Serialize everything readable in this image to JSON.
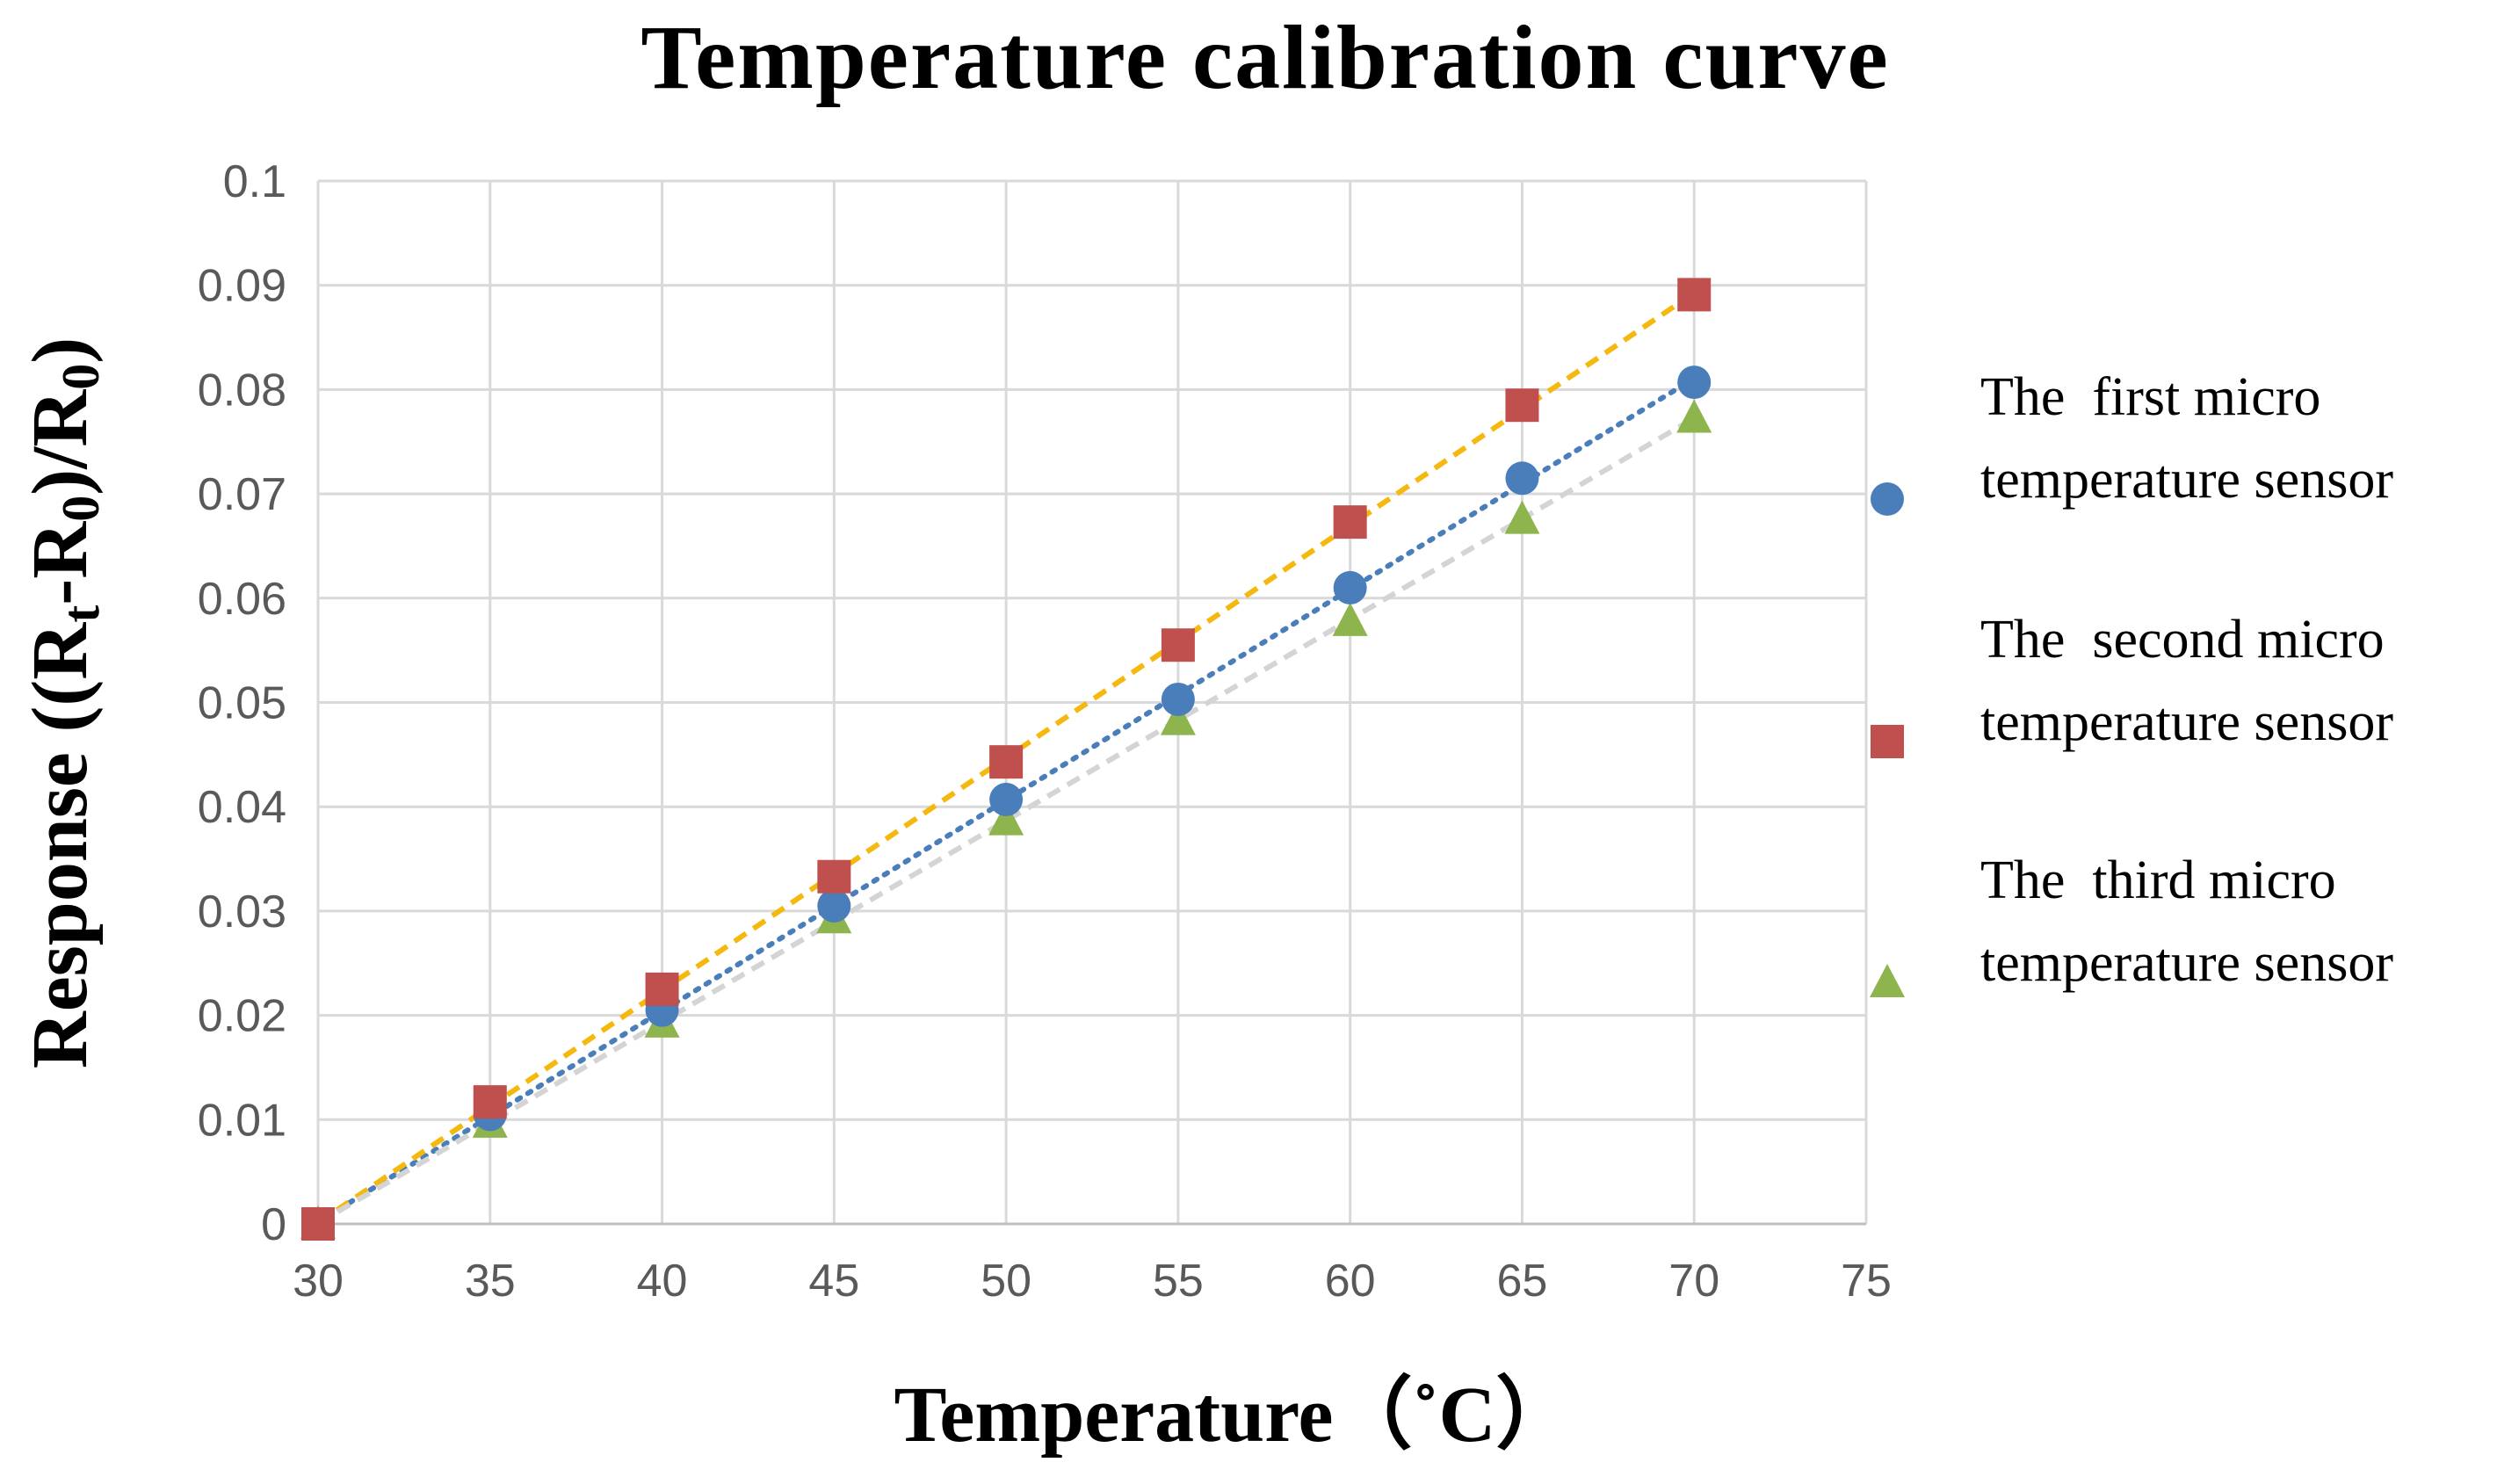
{
  "chart_data": {
    "type": "scatter",
    "title": "Temperature calibration curve",
    "xlabel": "Temperature（˚C）",
    "ylabel": "Response ((Rt-R0)/R0)",
    "ylabel_parts": {
      "prefix": "Response ((R",
      "sub1": "t",
      "middle": "-R",
      "sub2": "0",
      "mid2": ")/R",
      "sub3": "0",
      "suffix": ")"
    },
    "xlim": [
      30,
      75
    ],
    "ylim": [
      0,
      0.1
    ],
    "xticks": [
      30,
      35,
      40,
      45,
      50,
      55,
      60,
      65,
      70,
      75
    ],
    "yticks": [
      "0",
      "0.01",
      "0.02",
      "0.03",
      "0.04",
      "0.05",
      "0.06",
      "0.07",
      "0.08",
      "0.09",
      "0.1"
    ],
    "grid": true,
    "legend_position": "right",
    "x": [
      30,
      35,
      40,
      45,
      50,
      55,
      60,
      65,
      70
    ],
    "series": [
      {
        "name": "The first micro temperature sensor",
        "legend_lines": [
          "The  first micro",
          "temperature sensor"
        ],
        "marker": "circle",
        "color": "#4a7ebb",
        "trendline_color": "#4a7ebb",
        "trendline_style": "dotted",
        "values": [
          0,
          0.0105,
          0.0205,
          0.0305,
          0.0407,
          0.0503,
          0.061,
          0.0715,
          0.0807
        ]
      },
      {
        "name": "The second micro temperature sensor",
        "legend_lines": [
          "The  second micro",
          "temperature sensor"
        ],
        "marker": "square",
        "color": "#c0504d",
        "trendline_color": "#f5b80f",
        "trendline_style": "dashed",
        "values": [
          0,
          0.0117,
          0.0225,
          0.0333,
          0.0443,
          0.0555,
          0.0673,
          0.0785,
          0.0891
        ]
      },
      {
        "name": "The third micro temperature sensor",
        "legend_lines": [
          "The  third micro",
          "temperature sensor"
        ],
        "marker": "triangle",
        "color": "#8db44d",
        "trendline_color": "#d4d4d4",
        "trendline_style": "dashed",
        "values": [
          0,
          0.0097,
          0.0193,
          0.0293,
          0.0387,
          0.0483,
          0.0578,
          0.0676,
          0.0773
        ]
      }
    ]
  }
}
